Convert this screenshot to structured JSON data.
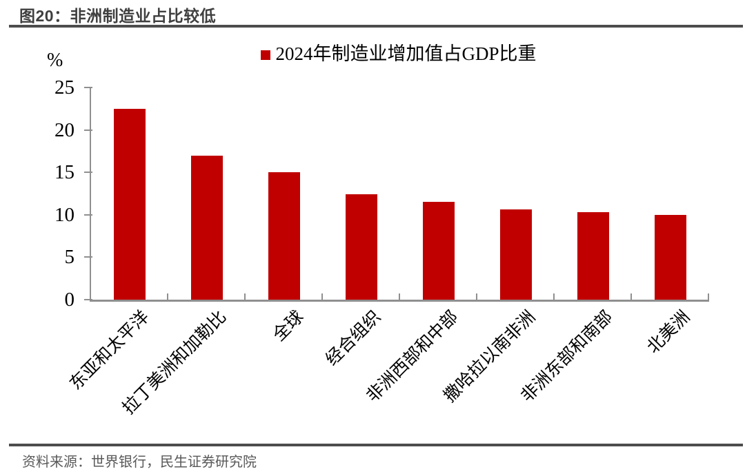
{
  "figure": {
    "title": "图20：非洲制造业占比较低",
    "source": "资料来源：世界银行，民生证券研究院"
  },
  "chart_data": {
    "type": "bar",
    "title": "图20：非洲制造业占比较低",
    "legend": [
      "2024年制造业增加值占GDP比重"
    ],
    "legend_position": "top",
    "unit_label": "%",
    "categories": [
      "东亚和太平洋",
      "拉丁美洲和加勒比",
      "全球",
      "经合组织",
      "非洲西部和中部",
      "撒哈拉以南非洲",
      "非洲东部和南部",
      "北美洲"
    ],
    "values": [
      22.5,
      17.0,
      15.0,
      12.4,
      11.5,
      10.6,
      10.3,
      10.0
    ],
    "ylim": [
      0,
      25
    ],
    "yticks": [
      0,
      5,
      10,
      15,
      20,
      25
    ],
    "grid": false,
    "bar_color": "#c00000"
  },
  "colors": {
    "bar": "#c00000",
    "axis": "#8f8f8f",
    "rule": "#4d4d4d",
    "title_text": "#3f3f3f",
    "source_text": "#595959"
  }
}
